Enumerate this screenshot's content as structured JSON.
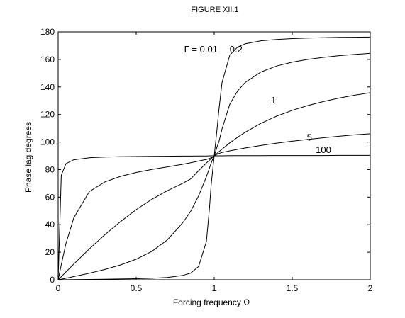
{
  "chart_data": {
    "type": "line",
    "title": "FIGURE XII.1",
    "xlabel": "Forcing frequency  Ω",
    "ylabel": "Phase lag     degrees",
    "xlim": [
      0,
      2
    ],
    "ylim": [
      0,
      180
    ],
    "xticks": [
      0,
      0.5,
      1,
      1.5,
      2
    ],
    "xtick_labels": [
      "0",
      "0.5",
      "1",
      "1.5",
      "2"
    ],
    "yticks": [
      0,
      20,
      40,
      60,
      80,
      100,
      120,
      140,
      160,
      180
    ],
    "ytick_labels": [
      "0",
      "20",
      "40",
      "60",
      "80",
      "100",
      "120",
      "140",
      "160",
      "180"
    ],
    "grid": false,
    "legend": "none",
    "x": [
      0,
      0.02,
      0.05,
      0.1,
      0.2,
      0.3,
      0.4,
      0.5,
      0.6,
      0.7,
      0.8,
      0.85,
      0.9,
      0.95,
      0.97,
      0.98,
      0.99,
      1.0,
      1.01,
      1.02,
      1.03,
      1.05,
      1.1,
      1.15,
      1.2,
      1.3,
      1.4,
      1.5,
      1.6,
      1.7,
      1.8,
      1.9,
      2.0
    ],
    "series": [
      {
        "gamma": 0.01,
        "values": [
          0,
          0.02,
          0.06,
          0.12,
          0.24,
          0.38,
          0.55,
          0.76,
          1.07,
          1.68,
          3.2,
          4.9,
          9.6,
          27.8,
          52.5,
          68.2,
          79.3,
          90,
          100.6,
          111.5,
          123.2,
          143.2,
          163.2,
          169.0,
          171.4,
          173.5,
          174.5,
          175.1,
          175.5,
          175.8,
          176.0,
          176.1,
          176.2
        ]
      },
      {
        "gamma": 0.2,
        "values": [
          0,
          0.4,
          1.1,
          2.3,
          4.8,
          7.5,
          10.8,
          14.9,
          20.6,
          29.0,
          41.6,
          49.9,
          60.9,
          74.9,
          81.3,
          84.5,
          87.6,
          90,
          93.4,
          97.1,
          100.2,
          109.5,
          127.5,
          137.1,
          143.4,
          150.9,
          155.2,
          158.0,
          160.0,
          161.5,
          162.7,
          163.6,
          164.4
        ]
      },
      {
        "gamma": 1,
        "values": [
          0,
          2.2,
          5.7,
          11.4,
          22.4,
          32.8,
          42.3,
          50.9,
          58.4,
          64.7,
          70.1,
          73.3,
          79.2,
          84.8,
          86.9,
          87.9,
          89.0,
          90,
          91.0,
          92.0,
          93.0,
          94.8,
          99.4,
          103.5,
          107.2,
          113.6,
          118.8,
          123.0,
          126.5,
          129.4,
          131.9,
          134.0,
          135.8
        ]
      },
      {
        "gamma": 5,
        "values": [
          0,
          10.9,
          26.4,
          44.9,
          64.1,
          71.1,
          75.1,
          77.9,
          80.1,
          82.0,
          83.9,
          85.0,
          86.2,
          87.4,
          88.1,
          88.6,
          89.3,
          90,
          90.6,
          91.2,
          91.7,
          92.4,
          93.6,
          94.7,
          95.7,
          97.5,
          99.2,
          100.6,
          101.9,
          103.1,
          104.2,
          105.2,
          106.0
        ]
      },
      {
        "gamma": 100,
        "values": [
          0,
          75.9,
          84.3,
          87.1,
          88.6,
          89.1,
          89.4,
          89.5,
          89.6,
          89.7,
          89.8,
          89.8,
          89.9,
          89.9,
          90.0,
          90.0,
          90.0,
          90,
          90.0,
          90.0,
          90.0,
          90.0,
          90.1,
          90.1,
          90.1,
          90.1,
          90.2,
          90.2,
          90.2,
          90.2,
          90.3,
          90.3,
          90.3
        ]
      }
    ],
    "annotations": [
      {
        "text": "Γ = 0.01",
        "x": 0.915,
        "y": 165
      },
      {
        "text": "0.2",
        "x": 1.14,
        "y": 165
      },
      {
        "text": "1",
        "x": 1.38,
        "y": 128
      },
      {
        "text": "5",
        "x": 1.61,
        "y": 101
      },
      {
        "text": "100",
        "x": 1.7,
        "y": 92
      }
    ]
  }
}
